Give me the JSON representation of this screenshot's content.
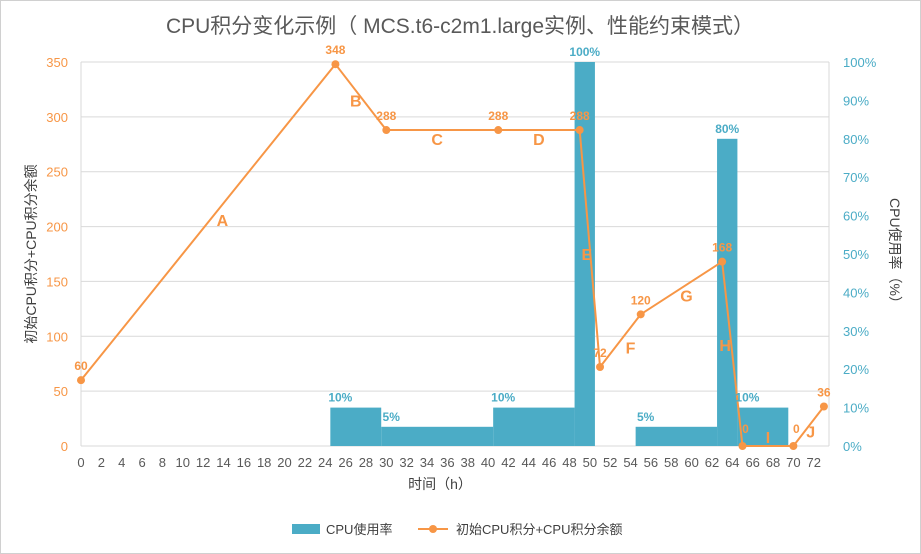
{
  "chart_data": {
    "type": "bar+line",
    "title": "CPU积分变化示例（ MCS.t6-c2m1.large实例、性能约束模式）",
    "xlabel": "时间（h）",
    "ylabel_left": "初始CPU积分+CPU积分余额",
    "ylabel_right": "CPU使用率（%）",
    "x_ticks": [
      0,
      2,
      4,
      6,
      8,
      10,
      12,
      14,
      16,
      18,
      20,
      22,
      24,
      26,
      28,
      30,
      32,
      34,
      36,
      38,
      40,
      42,
      44,
      46,
      48,
      50,
      52,
      54,
      56,
      58,
      60,
      62,
      64,
      66,
      68,
      70,
      72
    ],
    "x_range": [
      0,
      73.5
    ],
    "y_left": {
      "range": [
        0,
        350
      ],
      "ticks": [
        0,
        50,
        100,
        150,
        200,
        250,
        300,
        350
      ]
    },
    "y_right": {
      "range": [
        0,
        100
      ],
      "ticks": [
        "0%",
        "10%",
        "20%",
        "30%",
        "40%",
        "50%",
        "60%",
        "70%",
        "80%",
        "90%",
        "100%"
      ]
    },
    "grid": "horizontal",
    "legend": "bottom",
    "colors": {
      "bar": "#4BACC6",
      "line": "#F79646",
      "line_label": "#F79646"
    },
    "series": [
      {
        "name": "CPU使用率",
        "type": "bar",
        "axis": "right",
        "segments": [
          {
            "from": 25,
            "to": 29,
            "value": 10,
            "label": "10%"
          },
          {
            "from": 30,
            "to": 40,
            "value": 5,
            "label": "5%"
          },
          {
            "from": 41,
            "to": 48,
            "value": 10,
            "label": "10%"
          },
          {
            "from": 49,
            "to": 50,
            "value": 100,
            "label": "100%"
          },
          {
            "from": 55,
            "to": 62,
            "value": 5,
            "label": "5%"
          },
          {
            "from": 63,
            "to": 64,
            "value": 80,
            "label": "80%"
          },
          {
            "from": 65,
            "to": 69,
            "value": 10,
            "label": "10%"
          }
        ]
      },
      {
        "name": "初始CPU积分+CPU积分余额",
        "type": "line",
        "axis": "left",
        "points": [
          {
            "x": 0,
            "y": 60,
            "label": "60"
          },
          {
            "x": 25,
            "y": 348,
            "label": "348"
          },
          {
            "x": 30,
            "y": 288,
            "label": "288"
          },
          {
            "x": 41,
            "y": 288,
            "label": "288"
          },
          {
            "x": 49,
            "y": 288,
            "label": "288"
          },
          {
            "x": 51,
            "y": 72,
            "label": "72"
          },
          {
            "x": 55,
            "y": 120,
            "label": "120"
          },
          {
            "x": 63,
            "y": 168,
            "label": "168"
          },
          {
            "x": 65,
            "y": 0,
            "label": "0"
          },
          {
            "x": 70,
            "y": 0,
            "label": "0"
          },
          {
            "x": 73,
            "y": 36,
            "label": "36"
          }
        ]
      }
    ],
    "annotations": [
      {
        "text": "A",
        "x": 13.9,
        "y": 206
      },
      {
        "text": "B",
        "x": 27,
        "y": 315
      },
      {
        "text": "C",
        "x": 35,
        "y": 280
      },
      {
        "text": "D",
        "x": 45,
        "y": 280
      },
      {
        "text": "E",
        "x": 49.7,
        "y": 175
      },
      {
        "text": "F",
        "x": 54,
        "y": 90
      },
      {
        "text": "G",
        "x": 59.5,
        "y": 137
      },
      {
        "text": "H",
        "x": 63.3,
        "y": 92
      },
      {
        "text": "I",
        "x": 67.5,
        "y": 8
      },
      {
        "text": "J",
        "x": 71.7,
        "y": 13
      }
    ]
  }
}
